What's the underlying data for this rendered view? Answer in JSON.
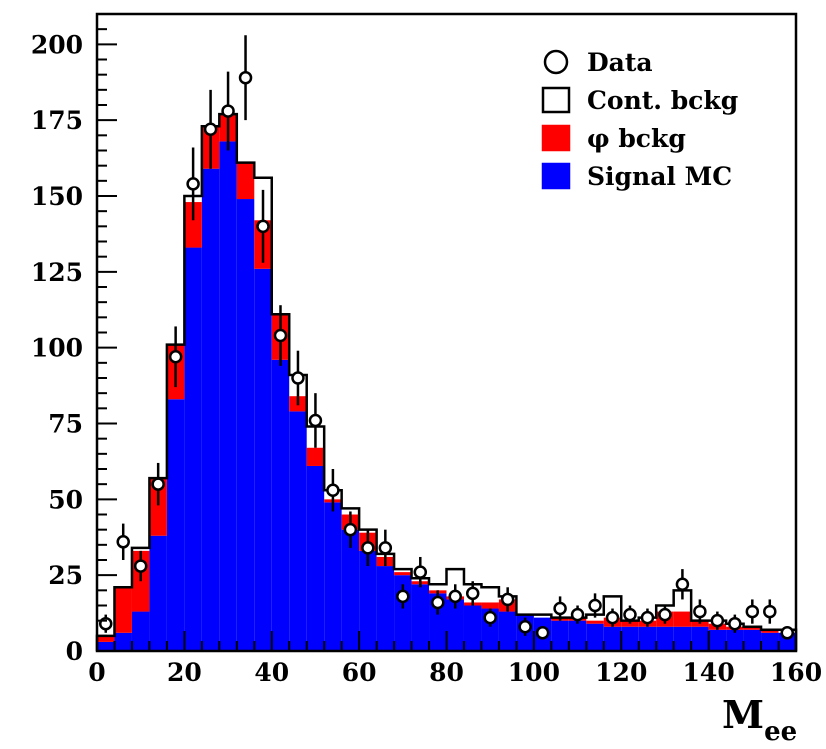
{
  "chart_data": {
    "type": "bar",
    "xlabel": "M",
    "xlabel_sub": "ee",
    "ylabel": "",
    "xlim": [
      0,
      160
    ],
    "ylim": [
      0,
      210
    ],
    "xticks": [
      0,
      20,
      40,
      60,
      80,
      100,
      120,
      140,
      160
    ],
    "yticks": [
      0,
      25,
      50,
      75,
      100,
      125,
      150,
      175,
      200
    ],
    "bin_edges": [
      0,
      4,
      8,
      12,
      16,
      20,
      24,
      28,
      32,
      36,
      40,
      44,
      48,
      52,
      56,
      60,
      64,
      68,
      72,
      76,
      80,
      84,
      88,
      92,
      96,
      100,
      104,
      108,
      112,
      116,
      120,
      124,
      128,
      132,
      136,
      140,
      144,
      148,
      152,
      156,
      160
    ],
    "series": [
      {
        "name": "Signal MC",
        "color": "#0000ff",
        "values": [
          3,
          6,
          13,
          38,
          83,
          133,
          159,
          168,
          149,
          126,
          96,
          79,
          61,
          49,
          40,
          33,
          28,
          25,
          22,
          19,
          17,
          15,
          14,
          13,
          12,
          11,
          10,
          10,
          9,
          8,
          8,
          8,
          8,
          8,
          8,
          7,
          7,
          7,
          6,
          6
        ]
      },
      {
        "name": "φ bckg",
        "color": "#ff0000",
        "values": [
          2,
          15,
          20,
          19,
          18,
          15,
          14,
          9,
          12,
          16,
          15,
          5,
          6,
          1,
          5,
          6,
          3,
          1,
          1,
          1,
          1,
          1,
          2,
          4,
          0,
          0,
          1,
          1,
          1,
          3,
          2,
          2,
          5,
          5,
          2,
          2,
          1,
          1,
          1,
          0
        ]
      },
      {
        "name": "Cont. bckg",
        "color": "#ffffff",
        "values": [
          0,
          0,
          1,
          0,
          0,
          2,
          0,
          0,
          0,
          14,
          0,
          7,
          7,
          3,
          2,
          1,
          1,
          1,
          1,
          2,
          9,
          6,
          5,
          1,
          0,
          1,
          0,
          0,
          2,
          7,
          0,
          1,
          2,
          7,
          0,
          1,
          1,
          0,
          0,
          1
        ]
      }
    ],
    "data_points": {
      "name": "Data",
      "x": [
        2,
        6,
        10,
        14,
        18,
        22,
        26,
        30,
        34,
        38,
        42,
        46,
        50,
        54,
        58,
        62,
        66,
        70,
        74,
        78,
        82,
        86,
        90,
        94,
        98,
        102,
        106,
        110,
        114,
        118,
        122,
        126,
        130,
        134,
        138,
        142,
        146,
        150,
        154,
        158
      ],
      "y": [
        9,
        36,
        28,
        55,
        97,
        154,
        172,
        178,
        189,
        140,
        104,
        90,
        76,
        53,
        40,
        34,
        34,
        18,
        26,
        16,
        18,
        19,
        11,
        17,
        8,
        6,
        14,
        12,
        15,
        11,
        12,
        11,
        12,
        22,
        13,
        10,
        9,
        13,
        13,
        6
      ],
      "err": [
        3,
        6,
        5,
        7,
        10,
        12,
        13,
        13,
        14,
        12,
        10,
        9,
        9,
        7,
        6,
        6,
        6,
        4,
        5,
        4,
        4,
        4,
        3,
        4,
        3,
        2,
        4,
        3,
        4,
        3,
        3,
        3,
        3,
        5,
        4,
        3,
        3,
        4,
        4,
        2
      ]
    },
    "legend": {
      "position": "top-right",
      "entries": [
        {
          "label": "Data",
          "marker": "open-circle"
        },
        {
          "label": "Cont. bckg",
          "marker": "open-box",
          "color": "#ffffff"
        },
        {
          "label": "φ bckg",
          "marker": "filled-box",
          "color": "#ff0000"
        },
        {
          "label": "Signal MC",
          "marker": "filled-box",
          "color": "#0000ff"
        }
      ]
    }
  }
}
